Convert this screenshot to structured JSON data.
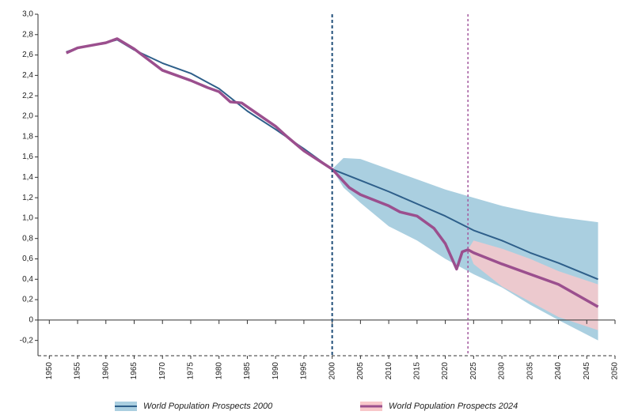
{
  "chart_data": {
    "type": "line",
    "xlim": [
      1948,
      2050
    ],
    "ylim": [
      -0.35,
      3.0
    ],
    "xticks": [
      1950,
      1955,
      1960,
      1965,
      1970,
      1975,
      1980,
      1985,
      1990,
      1995,
      2000,
      2005,
      2010,
      2015,
      2020,
      2025,
      2030,
      2035,
      2040,
      2045,
      2050
    ],
    "yticks": [
      {
        "value": 3.0,
        "label": "3,0"
      },
      {
        "value": 2.8,
        "label": "2,8"
      },
      {
        "value": 2.6,
        "label": "2,6"
      },
      {
        "value": 2.4,
        "label": "2,4"
      },
      {
        "value": 2.2,
        "label": "2,2"
      },
      {
        "value": 2.0,
        "label": "2,0"
      },
      {
        "value": 1.8,
        "label": "1,8"
      },
      {
        "value": 1.6,
        "label": "1,6"
      },
      {
        "value": 1.4,
        "label": "1,4"
      },
      {
        "value": 1.2,
        "label": "1,2"
      },
      {
        "value": 1.0,
        "label": "1,0"
      },
      {
        "value": 0.8,
        "label": "0,8"
      },
      {
        "value": 0.6,
        "label": "0,6"
      },
      {
        "value": 0.4,
        "label": "0,4"
      },
      {
        "value": 0.2,
        "label": "0,2"
      },
      0,
      {
        "value": -0.2,
        "label": "-0,2"
      }
    ],
    "vlines": [
      {
        "x": 2000,
        "color": "#1f4e79"
      },
      {
        "x": 2024,
        "color": "#a35a9e"
      }
    ],
    "series": [
      {
        "name": "World Population Prospects 2000",
        "color": "#2e5f8a",
        "x": [
          1953,
          1955,
          1960,
          1962,
          1965,
          1970,
          1975,
          1980,
          1985,
          1990,
          1995,
          2000,
          2005,
          2010,
          2015,
          2020,
          2025,
          2030,
          2035,
          2040,
          2047
        ],
        "values": [
          2.63,
          2.67,
          2.72,
          2.75,
          2.65,
          2.52,
          2.42,
          2.27,
          2.05,
          1.87,
          1.68,
          1.48,
          1.37,
          1.26,
          1.14,
          1.02,
          0.88,
          0.78,
          0.66,
          0.56,
          0.4
        ],
        "band": {
          "color": "#aacfe0",
          "x": [
            2000,
            2002,
            2005,
            2010,
            2015,
            2020,
            2025,
            2030,
            2035,
            2040,
            2047
          ],
          "upper": [
            1.48,
            1.59,
            1.58,
            1.48,
            1.38,
            1.28,
            1.2,
            1.12,
            1.06,
            1.01,
            0.96
          ],
          "lower": [
            1.48,
            1.3,
            1.15,
            0.92,
            0.78,
            0.6,
            0.45,
            0.32,
            0.15,
            0.0,
            -0.2
          ]
        }
      },
      {
        "name": "World Population Prospects 2024",
        "color": "#9b4f8e",
        "x": [
          1953,
          1955,
          1960,
          1962,
          1965,
          1970,
          1975,
          1978,
          1980,
          1982,
          1984,
          1990,
          1992,
          1995,
          2000,
          2003,
          2005,
          2010,
          2012,
          2015,
          2018,
          2020,
          2022,
          2023,
          2024,
          2025,
          2030,
          2035,
          2040,
          2047
        ],
        "values": [
          2.62,
          2.67,
          2.72,
          2.76,
          2.66,
          2.45,
          2.35,
          2.28,
          2.24,
          2.14,
          2.13,
          1.9,
          1.8,
          1.66,
          1.48,
          1.3,
          1.23,
          1.12,
          1.06,
          1.02,
          0.9,
          0.75,
          0.5,
          0.67,
          0.69,
          0.66,
          0.55,
          0.45,
          0.35,
          0.13
        ],
        "band": {
          "color": "#f8c8ca",
          "x": [
            2024,
            2025,
            2030,
            2035,
            2040,
            2047
          ],
          "upper": [
            0.69,
            0.78,
            0.7,
            0.6,
            0.48,
            0.35
          ],
          "lower": [
            0.69,
            0.55,
            0.33,
            0.18,
            0.03,
            -0.1
          ]
        }
      }
    ]
  }
}
